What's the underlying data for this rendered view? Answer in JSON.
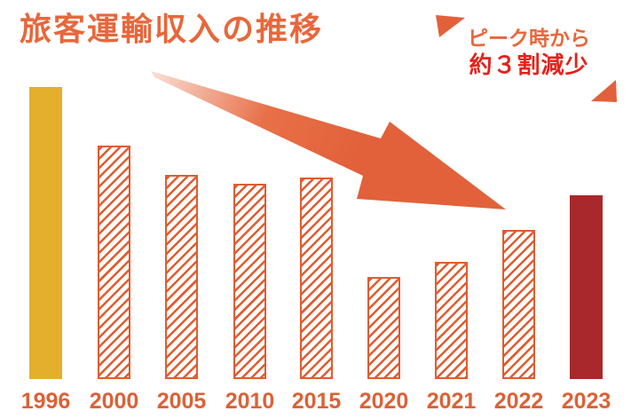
{
  "title": "旅客運輸収入の推移",
  "annotation": {
    "line1": "ピーク時から",
    "line2": "約３割減少"
  },
  "chart_data": {
    "type": "bar",
    "title": "旅客運輸収入の推移",
    "categories": [
      "1996",
      "2000",
      "2005",
      "2010",
      "2015",
      "2020",
      "2021",
      "2022",
      "2023"
    ],
    "values": [
      100,
      80,
      70,
      67,
      69,
      35,
      40,
      51,
      63
    ],
    "value_note": "relative index estimated from bar heights; 1996 peak = 100; no value axis or gridlines shown",
    "xlabel": "",
    "ylabel": "",
    "grid": false,
    "legend": false,
    "bar_styles": [
      "solid-peak",
      "hatched",
      "hatched",
      "hatched",
      "hatched",
      "hatched",
      "hatched",
      "hatched",
      "solid-current"
    ],
    "annotations": [
      "ピーク時から 約３割減少",
      "large orange arrow sweeping down-right from the 1996 peak toward the 2022/2023 bars"
    ]
  },
  "icons": {
    "decline_arrow": "diagonal arrow pointing down-right, fading tail",
    "triangle_top_left": "orange corner wedge",
    "triangle_bottom_right": "orange corner wedge"
  },
  "colors": {
    "accent_orange": "#E8673B",
    "arrow_orange": "#E2613A",
    "arrow_mid": "#E87048",
    "arrow_tail": "#F9DED4",
    "hatch_orange": "#E05C30",
    "peak_gold": "#E3AF2D",
    "current_dark_red": "#A9282B",
    "alert_red": "#E3231B",
    "year_label_orange": "#DD6136",
    "background": "#FFFFFF"
  }
}
